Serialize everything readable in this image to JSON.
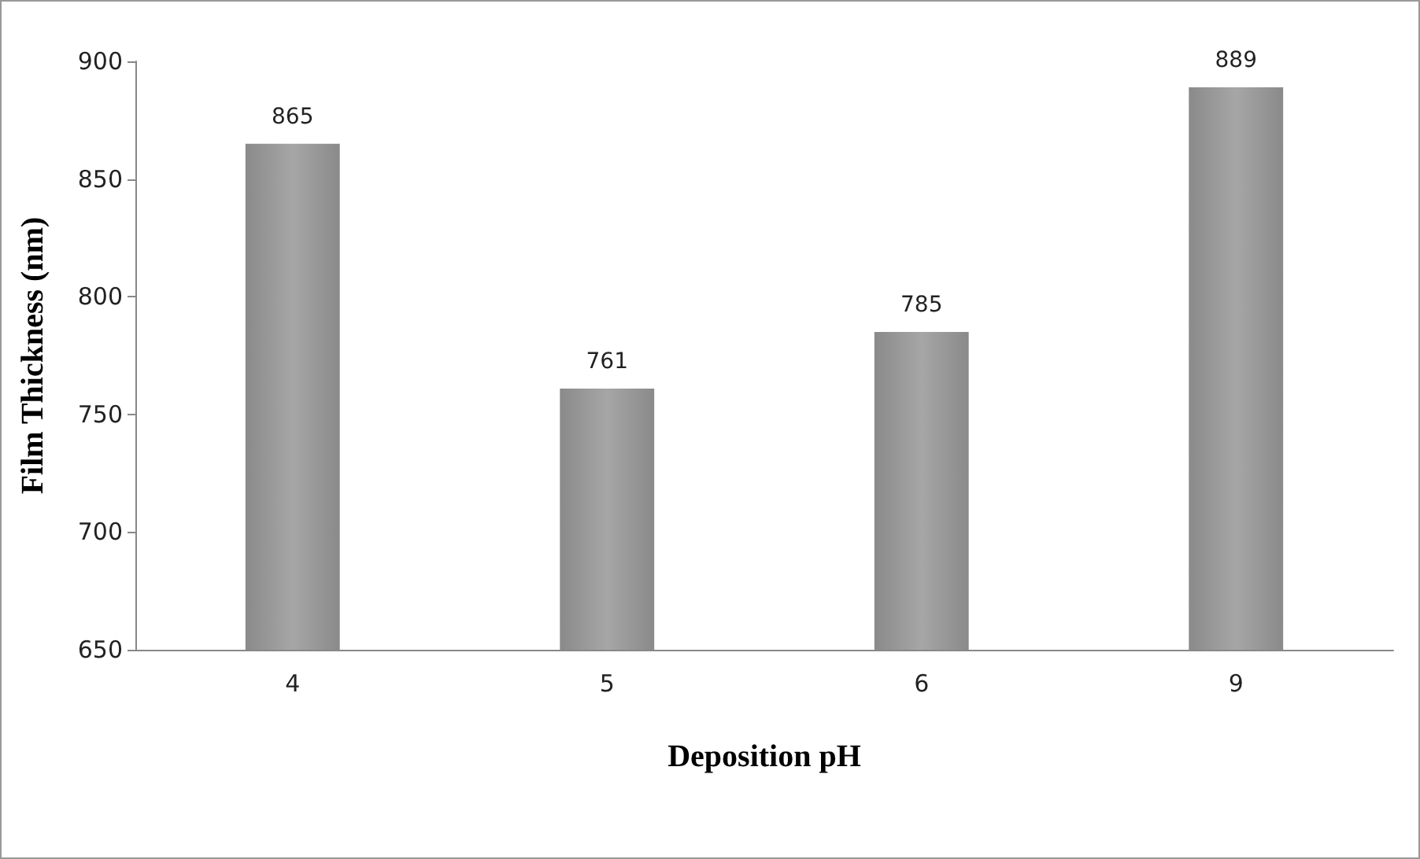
{
  "chart_data": {
    "type": "bar",
    "xlabel": "Deposition pH",
    "ylabel": "Film Thickness (nm)",
    "categories": [
      "4",
      "5",
      "6",
      "9"
    ],
    "values": [
      865,
      761,
      785,
      889
    ],
    "color": "#a6a6a6",
    "ylim": [
      650,
      900
    ],
    "yticks": [
      650,
      700,
      750,
      800,
      850,
      900
    ],
    "grid": false,
    "data_labels": true
  }
}
